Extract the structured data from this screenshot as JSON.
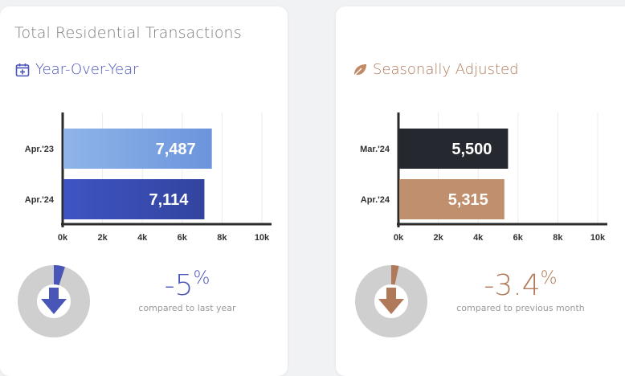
{
  "colors": {
    "yoy_accent": "#4a55b8",
    "sa_accent": "#b07a5a",
    "bar_apr23": "#7ea6e0",
    "bar_apr24_yoy": "#3a4cb8",
    "bar_mar24": "#262830",
    "bar_apr24_sa": "#c0906e",
    "donut_track": "#cfcfcf"
  },
  "left": {
    "title": "Total Residential Transactions",
    "subtitle": "Year-Over-Year",
    "subtitle_icon": "calendar-plus-icon",
    "change": {
      "value": "-5",
      "symbol": "%",
      "caption": "compared to last year",
      "fraction": 0.05
    },
    "arrow_icon": "arrow-down-icon"
  },
  "right": {
    "subtitle": "Seasonally Adjusted",
    "subtitle_icon": "leaf-icon",
    "change": {
      "value": "-3.4",
      "symbol": "%",
      "caption": "compared to previous month",
      "fraction": 0.034
    },
    "arrow_icon": "arrow-down-icon"
  },
  "chart_data": [
    {
      "type": "bar",
      "orientation": "horizontal",
      "categories": [
        "Apr.'23",
        "Apr.'24"
      ],
      "values": [
        7487,
        7114
      ],
      "value_labels": [
        "7,487",
        "7,114"
      ],
      "xlim": [
        0,
        10000
      ],
      "x_ticks": [
        0,
        2000,
        4000,
        6000,
        8000,
        10000
      ],
      "x_tick_labels": [
        "0k",
        "2k",
        "4k",
        "6k",
        "8k",
        "10k"
      ],
      "grid": true,
      "title": "",
      "xlabel": "",
      "ylabel": ""
    },
    {
      "type": "bar",
      "orientation": "horizontal",
      "categories": [
        "Mar.'24",
        "Apr.'24"
      ],
      "values": [
        5500,
        5315
      ],
      "value_labels": [
        "5,500",
        "5,315"
      ],
      "xlim": [
        0,
        10000
      ],
      "x_ticks": [
        0,
        2000,
        4000,
        6000,
        8000,
        10000
      ],
      "x_tick_labels": [
        "0k",
        "2k",
        "4k",
        "6k",
        "8k",
        "10k"
      ],
      "grid": true,
      "title": "",
      "xlabel": "",
      "ylabel": ""
    }
  ]
}
